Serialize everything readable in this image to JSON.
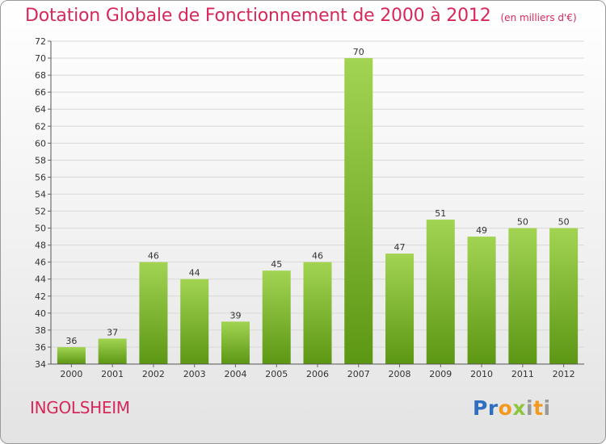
{
  "header": {
    "title": "Dotation Globale de Fonctionnement de 2000 à 2012",
    "subtitle": "(en milliers d'€)"
  },
  "footer": {
    "commune": "INGOLSHEIM",
    "logo_text": "Proxiti"
  },
  "colors": {
    "accent": "#d7285a",
    "bar_light": "#9dd04f",
    "bar_dark": "#5f9a16"
  },
  "chart_data": {
    "type": "bar",
    "categories": [
      "2000",
      "2001",
      "2002",
      "2003",
      "2004",
      "2005",
      "2006",
      "2007",
      "2008",
      "2009",
      "2010",
      "2011",
      "2012"
    ],
    "values": [
      36,
      37,
      46,
      44,
      39,
      45,
      46,
      70,
      47,
      51,
      49,
      50,
      50
    ],
    "title": "Dotation Globale de Fonctionnement de 2000 à 2012",
    "subtitle": "(en milliers d'€)",
    "xlabel": "",
    "ylabel": "",
    "ylim": [
      34,
      72
    ],
    "ytick_step": 2,
    "grid": true,
    "data_labels": true,
    "legend": "none"
  }
}
